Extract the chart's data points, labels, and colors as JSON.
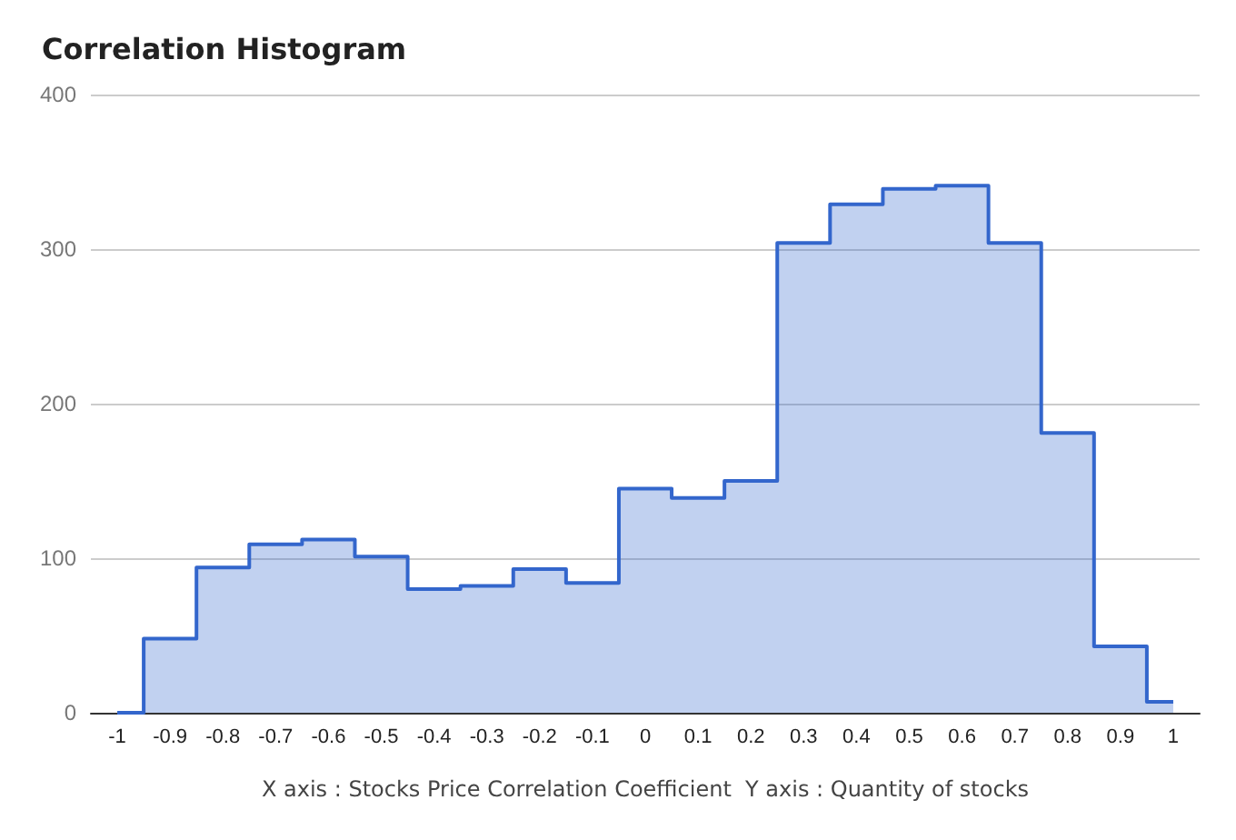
{
  "chart_data": {
    "type": "step",
    "title": "Correlation Histogram",
    "xlabel": "X axis : Stocks Price Correlation Coefficient  Y axis : Quantity of stocks",
    "x": [
      -1,
      -0.9,
      -0.8,
      -0.7,
      -0.6,
      -0.5,
      -0.4,
      -0.3,
      -0.2,
      -0.1,
      0,
      0.1,
      0.2,
      0.3,
      0.4,
      0.5,
      0.6,
      0.7,
      0.8,
      0.9,
      1
    ],
    "series": [
      {
        "color": "#3366cc",
        "values": [
          0,
          48,
          94,
          109,
          112,
          101,
          80,
          82,
          93,
          84,
          145,
          139,
          150,
          304,
          329,
          339,
          341,
          304,
          181,
          43,
          7
        ]
      }
    ],
    "xlim": [
      -1.05,
      1.05
    ],
    "xticks": [
      -1,
      -0.9,
      -0.8,
      -0.7,
      -0.6,
      -0.5,
      -0.4,
      -0.3,
      -0.2,
      -0.1,
      0,
      0.1,
      0.2,
      0.3,
      0.4,
      0.5,
      0.6,
      0.7,
      0.8,
      0.9,
      1
    ],
    "ylim": [
      0,
      400
    ],
    "yticks": [
      0,
      100,
      200,
      300,
      400
    ],
    "grid": "y",
    "marker": "none",
    "line_style": "solid"
  }
}
